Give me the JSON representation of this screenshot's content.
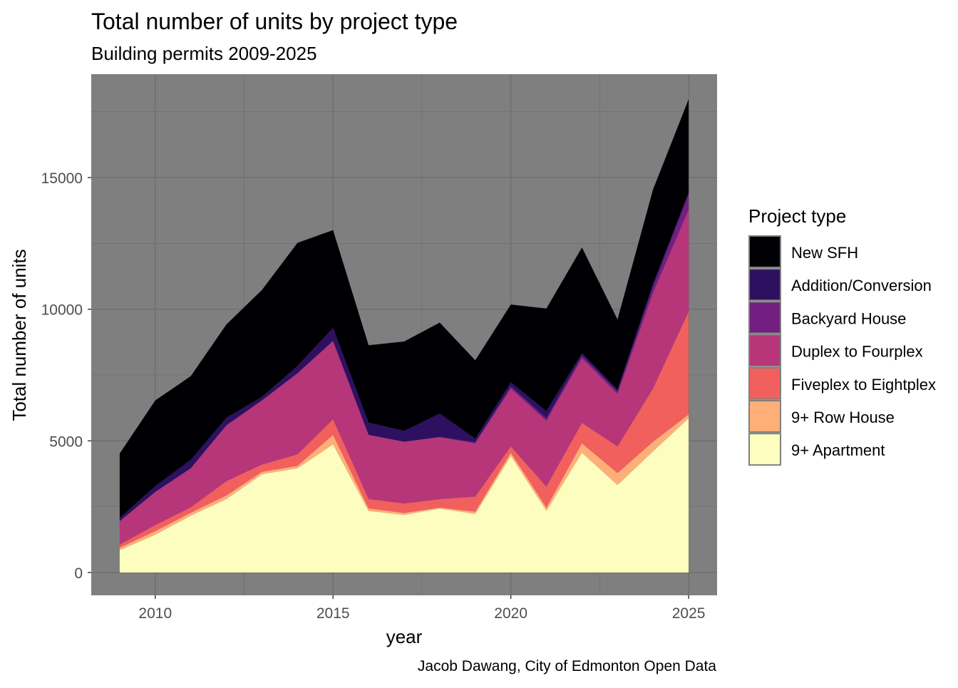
{
  "chart_data": {
    "type": "area",
    "stacked": true,
    "title": "Total number of units by project type",
    "subtitle": "Building permits 2009-2025",
    "caption": "Jacob Dawang, City of Edmonton Open Data",
    "xlabel": "year",
    "ylabel": "Total number of units",
    "xlim": [
      2008.2,
      2025.8
    ],
    "ylim": [
      -866,
      18928
    ],
    "x_ticks": [
      2010,
      2015,
      2020,
      2025
    ],
    "y_ticks": [
      0,
      5000,
      10000,
      15000
    ],
    "grid": true,
    "panel_background": "#7F7F7F",
    "legend": {
      "title": "Project type",
      "placement": "right"
    },
    "x": [
      2009,
      2010,
      2011,
      2012,
      2013,
      2014,
      2015,
      2016,
      2017,
      2018,
      2019,
      2020,
      2021,
      2022,
      2023,
      2024,
      2025
    ],
    "series": [
      {
        "name": "New SFH",
        "color": "#000004",
        "values": [
          2450,
          3250,
          3180,
          3545,
          4060,
          4675,
          3715,
          2935,
          3395,
          3455,
          2975,
          2955,
          3895,
          4010,
          2660,
          3575,
          3545
        ]
      },
      {
        "name": "Addition/Conversion",
        "color": "#2D1160",
        "values": [
          120,
          225,
          320,
          285,
          135,
          275,
          500,
          470,
          415,
          890,
          140,
          155,
          275,
          95,
          80,
          120,
          60
        ]
      },
      {
        "name": "Backyard House",
        "color": "#721F81",
        "values": [
          0,
          0,
          0,
          0,
          0,
          0,
          0,
          0,
          0,
          0,
          40,
          80,
          95,
          95,
          85,
          235,
          595
        ]
      },
      {
        "name": "Duplex to Fourplex",
        "color": "#B63679",
        "values": [
          895,
          1260,
          1485,
          2125,
          2435,
          3085,
          2975,
          2435,
          2345,
          2360,
          2025,
          2205,
          2500,
          2465,
          2000,
          3630,
          3870
        ]
      },
      {
        "name": "Fiveplex to Eightplex",
        "color": "#F1605D",
        "values": [
          115,
          230,
          205,
          540,
          275,
          435,
          590,
          360,
          360,
          320,
          570,
          235,
          795,
          775,
          1010,
          2025,
          3905
        ]
      },
      {
        "name": "9+ Row House",
        "color": "#FEAF77",
        "values": [
          90,
          135,
          110,
          135,
          90,
          90,
          360,
          90,
          70,
          35,
          85,
          120,
          120,
          355,
          455,
          360,
          145
        ]
      },
      {
        "name": "9+ Apartment",
        "color": "#FCFDBF",
        "values": [
          850,
          1435,
          2160,
          2790,
          3735,
          3960,
          4865,
          2340,
          2190,
          2430,
          2225,
          4430,
          2345,
          4550,
          3320,
          4605,
          5855
        ]
      }
    ]
  }
}
